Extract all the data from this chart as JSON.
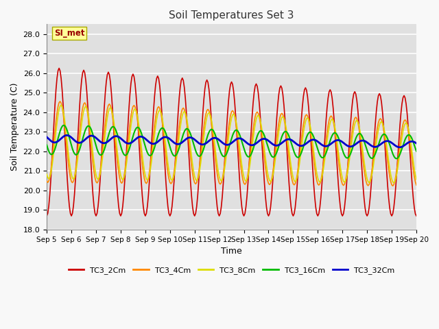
{
  "title": "Soil Temperatures Set 3",
  "xlabel": "Time",
  "ylabel": "Soil Temperature (C)",
  "ylim": [
    18.0,
    28.5
  ],
  "yticks": [
    18.0,
    19.0,
    20.0,
    21.0,
    22.0,
    23.0,
    24.0,
    25.0,
    26.0,
    27.0,
    28.0
  ],
  "x_labels": [
    "Sep 5",
    "Sep 6",
    "Sep 7",
    "Sep 8",
    "Sep 9",
    "Sep 10",
    "Sep 11",
    "Sep 12",
    "Sep 13",
    "Sep 14",
    "Sep 15",
    "Sep 16",
    "Sep 17",
    "Sep 18",
    "Sep 19",
    "Sep 20"
  ],
  "annotation": "SI_met",
  "bg_color": "#e0e0e0",
  "grid_color": "#ffffff",
  "fig_color": "#f8f8f8",
  "series_colors": {
    "TC3_2Cm": "#cc0000",
    "TC3_4Cm": "#ff8800",
    "TC3_8Cm": "#dddd00",
    "TC3_16Cm": "#00bb00",
    "TC3_32Cm": "#0000cc"
  },
  "series_lw": {
    "TC3_2Cm": 1.2,
    "TC3_4Cm": 1.2,
    "TC3_8Cm": 1.2,
    "TC3_16Cm": 1.5,
    "TC3_32Cm": 2.0
  }
}
